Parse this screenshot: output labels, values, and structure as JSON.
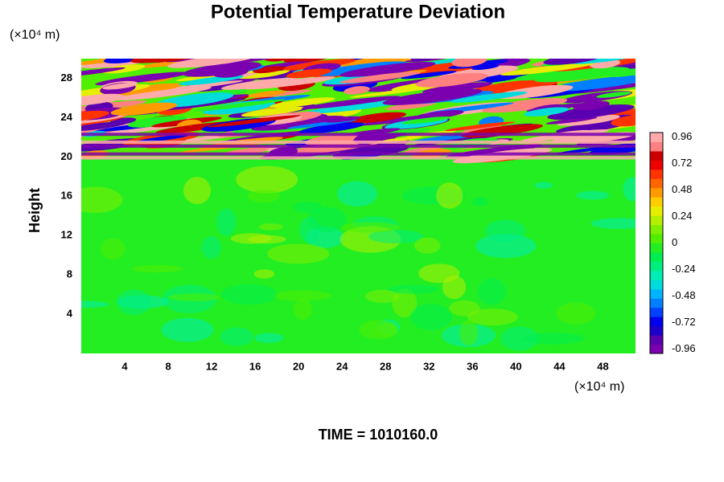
{
  "chart_data": {
    "type": "heatmap",
    "title": "Potential Temperature Deviation",
    "ylabel": "Height",
    "y_unit": "(×10⁴ m)",
    "x_unit": "(×10⁴ m)",
    "footer": "TIME = 1010160.0",
    "xlim": [
      0,
      51
    ],
    "xticks": [
      4,
      8,
      12,
      16,
      20,
      24,
      28,
      32,
      36,
      40,
      44,
      48
    ],
    "ylim": [
      0,
      30
    ],
    "yticks": [
      4,
      8,
      12,
      16,
      20,
      24,
      28
    ],
    "colorbar": {
      "lim": [
        -1,
        1
      ],
      "ticks": [
        0.96,
        0.72,
        0.48,
        0.24,
        0,
        -0.24,
        -0.48,
        -0.72,
        -0.96
      ],
      "colors": [
        "#7a00b0",
        "#5a00b0",
        "#1a00c8",
        "#0000ee",
        "#0040ff",
        "#0080ff",
        "#00b4ff",
        "#00dcdc",
        "#00eeb4",
        "#00ee80",
        "#00ee50",
        "#22ee22",
        "#50ee00",
        "#80ee00",
        "#b4ee00",
        "#e6ee00",
        "#ffcc00",
        "#ff9a00",
        "#ff6600",
        "#ff3300",
        "#ee0000",
        "#cc0000",
        "#ff8080",
        "#ffaaaa"
      ]
    }
  }
}
